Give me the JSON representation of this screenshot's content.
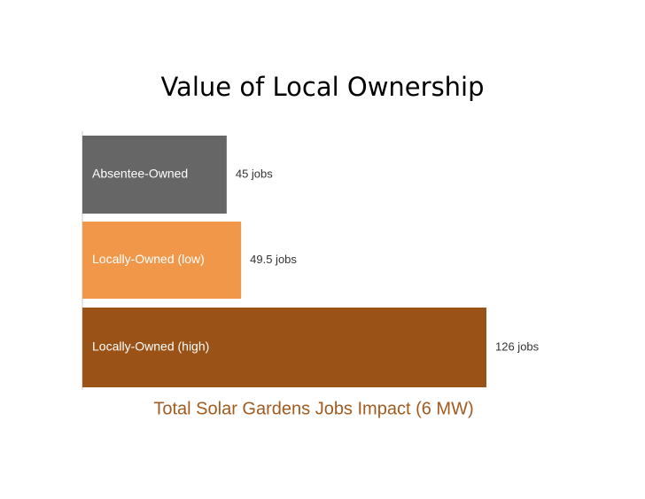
{
  "chart_data": {
    "type": "hbar",
    "title": "Value of Local Ownership",
    "subtitle": "Total Solar Gardens Jobs Impact (6 MW)",
    "categories": [
      "Absentee-Owned",
      "Locally-Owned (low)",
      "Locally-Owned (high)"
    ],
    "values": [
      45,
      49.5,
      126
    ],
    "value_labels": [
      "45 jobs",
      "49.5 jobs",
      "126 jobs"
    ],
    "colors": [
      "#666666",
      "#f0974a",
      "#9a5216"
    ]
  }
}
